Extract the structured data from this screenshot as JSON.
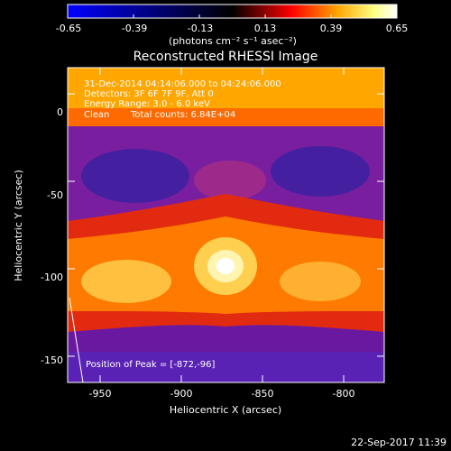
{
  "colorbar": {
    "tick_labels": [
      "-0.65",
      "-0.39",
      "-0.13",
      "0.13",
      "0.39",
      "0.65"
    ],
    "tick_values": [
      -0.65,
      -0.39,
      -0.13,
      0.13,
      0.39,
      0.65
    ],
    "range": [
      -0.65,
      0.65
    ],
    "unit_text": "(photons cm⁻² s⁻¹ asec⁻²)",
    "colormap": [
      "#0000ff",
      "#000000",
      "#ff0000",
      "#ffa500",
      "#ffff80",
      "#ffffff"
    ]
  },
  "plot": {
    "title": "Reconstructed RHESSI Image",
    "xlabel": "Heliocentric X (arcsec)",
    "ylabel": "Heliocentric Y (arcsec)",
    "xlim": [
      -970,
      -775
    ],
    "ylim": [
      -165,
      15
    ],
    "x_ticks": [
      -950,
      -900,
      -850,
      -800
    ],
    "x_tick_labels": [
      "-950",
      "-900",
      "-850",
      "-800"
    ],
    "y_ticks": [
      0,
      -50,
      -100,
      -150
    ],
    "y_tick_labels": [
      "0",
      "-50",
      "-100",
      "-150"
    ]
  },
  "info": {
    "line1": "31-Dec-2014 04:14:06.000 to 04:24:06.000",
    "line2": "Detectors: 3F 6F 7F 9F, Att 0",
    "line3": "Energy Range: 3.0 - 6.0 keV",
    "line4_left": "Clean",
    "line4_right": "Total counts: 6.84E+04"
  },
  "peak": {
    "label": "Position of Peak = [-872,-96]",
    "x": -872,
    "y": -96
  },
  "timestamp": "22-Sep-2017 11:39"
}
